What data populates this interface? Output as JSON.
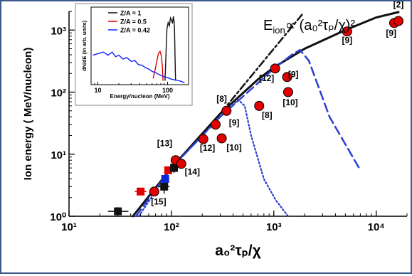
{
  "chart_data": [
    {
      "type": "scatter",
      "title": "",
      "xlabel": "a₀²τₚ/χ",
      "ylabel": "Ion energy ( MeV/nucleon)",
      "xscale": "log",
      "yscale": "log",
      "xlim": [
        10,
        20000
      ],
      "ylim": [
        1,
        2000
      ],
      "xticks": [
        "10¹",
        "10²",
        "10³",
        "10⁴"
      ],
      "yticks": [
        "10⁰",
        "10¹",
        "10²",
        "10³"
      ],
      "grid": false,
      "annotation": {
        "prefix": "E",
        "sub": "ion",
        "body": "∝ (a₀²τₚ/χ)²"
      },
      "colors": {
        "red": "#e00000",
        "black": "#111111",
        "blue": "#2a3fd0",
        "series_blue": "#0a28d8"
      },
      "series": [
        {
          "marker": "red-circle",
          "points": [
            {
              "x": 68,
              "y": 2.5
            },
            {
              "x": 110,
              "y": 8
            },
            {
              "x": 125,
              "y": 7
            },
            {
              "x": 205,
              "y": 17.5
            },
            {
              "x": 270,
              "y": 30
            },
            {
              "x": 310,
              "y": 18
            },
            {
              "x": 345,
              "y": 50
            },
            {
              "x": 720,
              "y": 60
            },
            {
              "x": 1030,
              "y": 240
            },
            {
              "x": 1350,
              "y": 175
            },
            {
              "x": 1380,
              "y": 100
            },
            {
              "x": 5200,
              "y": 950
            },
            {
              "x": 15000,
              "y": 1300
            },
            {
              "x": 16500,
              "y": 1400
            }
          ]
        },
        {
          "marker": "red-square",
          "points": [
            {
              "x": 50,
              "y": 2.5,
              "xerr": [
                44,
                57
              ],
              "yerr": [
                2.2,
                2.8
              ]
            },
            {
              "x": 93,
              "y": 5.5,
              "xerr": [
                86,
                100
              ],
              "yerr": [
                5.0,
                6.0
              ]
            }
          ]
        },
        {
          "marker": "black-square",
          "points": [
            {
              "x": 30,
              "y": 1.2,
              "xerr": [
                24,
                38
              ],
              "yerr": [
                1.05,
                1.4
              ]
            },
            {
              "x": 85,
              "y": 3.0,
              "xerr": [
                75,
                96
              ],
              "yerr": [
                2.3,
                3.8
              ]
            },
            {
              "x": 106,
              "y": 6.0,
              "xerr": [
                97,
                116
              ],
              "yerr": [
                5.0,
                7.2
              ]
            }
          ]
        },
        {
          "marker": "blue-square",
          "points": [
            {
              "x": 87,
              "y": 4.0,
              "xerr": [
                80,
                95
              ],
              "yerr": [
                3.5,
                4.6
              ]
            }
          ]
        },
        {
          "line": "solid-black",
          "points": [
            {
              "x": 42,
              "y": 1
            },
            {
              "x": 100,
              "y": 6
            },
            {
              "x": 300,
              "y": 45
            },
            {
              "x": 700,
              "y": 160
            },
            {
              "x": 1000,
              "y": 250
            },
            {
              "x": 2000,
              "y": 500
            },
            {
              "x": 5000,
              "y": 1000
            },
            {
              "x": 10000,
              "y": 1600
            },
            {
              "x": 16500,
              "y": 1950
            }
          ]
        },
        {
          "line": "dash-dot-black",
          "points": [
            {
              "x": 100,
              "y": 6
            },
            {
              "x": 300,
              "y": 45
            },
            {
              "x": 1000,
              "y": 500
            },
            {
              "x": 1900,
              "y": 1800
            }
          ]
        },
        {
          "line": "dashed-blue",
          "points": [
            {
              "x": 45,
              "y": 1
            },
            {
              "x": 100,
              "y": 6
            },
            {
              "x": 300,
              "y": 40
            },
            {
              "x": 700,
              "y": 140
            },
            {
              "x": 1000,
              "y": 240
            },
            {
              "x": 1500,
              "y": 400
            },
            {
              "x": 1800,
              "y": 480
            },
            {
              "x": 2200,
              "y": 320
            },
            {
              "x": 3500,
              "y": 40
            },
            {
              "x": 6800,
              "y": 6
            }
          ]
        },
        {
          "line": "dotted-blue",
          "points": [
            {
              "x": 48,
              "y": 1
            },
            {
              "x": 100,
              "y": 6
            },
            {
              "x": 300,
              "y": 40
            },
            {
              "x": 450,
              "y": 75
            },
            {
              "x": 520,
              "y": 60
            },
            {
              "x": 600,
              "y": 20
            },
            {
              "x": 800,
              "y": 4
            },
            {
              "x": 1050,
              "y": 1.8
            },
            {
              "x": 1380,
              "y": 1
            }
          ]
        }
      ],
      "labels": [
        {
          "text": "[2]",
          "x": 16500,
          "y": 2300
        },
        {
          "text": "[9]",
          "x": 14000,
          "y": 800
        },
        {
          "text": "[9]",
          "x": 5200,
          "y": 620
        },
        {
          "text": "[12]",
          "x": 850,
          "y": 150
        },
        {
          "text": "[9]",
          "x": 1550,
          "y": 175
        },
        {
          "text": "[10]",
          "x": 1450,
          "y": 61
        },
        {
          "text": "[8]",
          "x": 310,
          "y": 70
        },
        {
          "text": "[9]",
          "x": 410,
          "y": 29
        },
        {
          "text": "[8]",
          "x": 860,
          "y": 38
        },
        {
          "text": "[10]",
          "x": 410,
          "y": 11.5
        },
        {
          "text": "[12]",
          "x": 225,
          "y": 11.3
        },
        {
          "text": "[13]",
          "x": 86,
          "y": 13.5
        },
        {
          "text": "[14]",
          "x": 160,
          "y": 4.7
        },
        {
          "text": "[15]",
          "x": 75,
          "y": 1.55
        }
      ]
    },
    {
      "type": "line",
      "title": "",
      "xlabel": "Energy/nucleon (MeV)",
      "ylabel": "dN/dE (in arb. units)",
      "xscale": "log",
      "xlim": [
        8,
        200
      ],
      "xticks": [
        "10",
        "100"
      ],
      "legend": {
        "placement": "top-left"
      },
      "series": [
        {
          "name": "Z/A = 1",
          "color": "#111111",
          "points": [
            [
              92,
              0.05
            ],
            [
              95,
              0.4
            ],
            [
              98,
              0.72
            ],
            [
              102,
              0.8
            ],
            [
              106,
              0.76
            ],
            [
              110,
              0.86
            ],
            [
              114,
              0.83
            ],
            [
              118,
              0.79
            ],
            [
              121,
              0.88
            ],
            [
              124,
              0.81
            ],
            [
              126,
              0.7
            ],
            [
              128,
              0.35
            ],
            [
              130,
              0.05
            ]
          ]
        },
        {
          "name": "Z/A = 0.5",
          "color": "#e00000",
          "points": [
            [
              62,
              0.08
            ],
            [
              66,
              0.18
            ],
            [
              70,
              0.3
            ],
            [
              74,
              0.4
            ],
            [
              78,
              0.43
            ],
            [
              81,
              0.38
            ],
            [
              84,
              0.25
            ],
            [
              86,
              0.05
            ]
          ]
        },
        {
          "name": "Z/A = 0.42",
          "color": "#1020ff",
          "points": [
            [
              8.5,
              0.38
            ],
            [
              10,
              0.4
            ],
            [
              12,
              0.42
            ],
            [
              14,
              0.38
            ],
            [
              16,
              0.42
            ],
            [
              18,
              0.36
            ],
            [
              20,
              0.38
            ],
            [
              23,
              0.33
            ],
            [
              26,
              0.35
            ],
            [
              30,
              0.3
            ],
            [
              34,
              0.31
            ],
            [
              38,
              0.26
            ],
            [
              43,
              0.25
            ],
            [
              48,
              0.22
            ],
            [
              54,
              0.2
            ],
            [
              60,
              0.17
            ],
            [
              66,
              0.16
            ],
            [
              72,
              0.14
            ],
            [
              80,
              0.12
            ],
            [
              90,
              0.1
            ],
            [
              100,
              0.09
            ],
            [
              115,
              0.07
            ],
            [
              130,
              0.06
            ],
            [
              145,
              0.05
            ],
            [
              160,
              0.04
            ],
            [
              175,
              0.02
            ]
          ]
        }
      ]
    }
  ]
}
